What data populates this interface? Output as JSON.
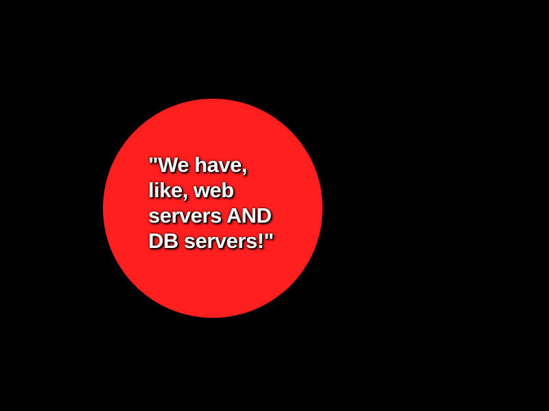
{
  "slide": {
    "background_color": "#000000",
    "bubble_color": "#ff1f1f",
    "text_color": "#ffffff",
    "quote_lines": [
      "\"We have,",
      "like, web",
      "servers AND",
      "DB servers!\""
    ]
  }
}
